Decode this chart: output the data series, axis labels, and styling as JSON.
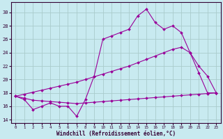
{
  "xlabel": "Windchill (Refroidissement éolien,°C)",
  "bg_color": "#c8eaf0",
  "grid_color": "#aacccc",
  "line_color": "#990099",
  "x_ticks": [
    0,
    1,
    2,
    3,
    4,
    5,
    6,
    7,
    8,
    9,
    10,
    11,
    12,
    13,
    14,
    15,
    16,
    17,
    18,
    19,
    20,
    21,
    22,
    23
  ],
  "y_ticks": [
    14,
    16,
    18,
    20,
    22,
    24,
    26,
    28,
    30
  ],
  "xlim": [
    -0.5,
    23.5
  ],
  "ylim": [
    13.5,
    31.5
  ],
  "line1_x": [
    0,
    1,
    2,
    3,
    4,
    5,
    6,
    7,
    8,
    9,
    10,
    11,
    12,
    13,
    14,
    15,
    16,
    17,
    18,
    19,
    20,
    21,
    22,
    23
  ],
  "line1_y": [
    17.5,
    17.0,
    15.5,
    16.0,
    16.5,
    16.0,
    16.0,
    14.5,
    17.0,
    20.5,
    26.0,
    26.5,
    27.0,
    27.5,
    29.5,
    30.5,
    28.5,
    27.5,
    28.0,
    27.0,
    24.0,
    21.0,
    18.0,
    18.0
  ],
  "line2_x": [
    0,
    1,
    2,
    3,
    4,
    5,
    6,
    7,
    8,
    9,
    10,
    11,
    12,
    13,
    14,
    15,
    16,
    17,
    18,
    19,
    20,
    21,
    22,
    23
  ],
  "line2_y": [
    17.5,
    17.8,
    18.1,
    18.4,
    18.7,
    19.0,
    19.3,
    19.6,
    20.0,
    20.4,
    20.8,
    21.2,
    21.6,
    22.0,
    22.5,
    23.0,
    23.5,
    24.0,
    24.5,
    24.8,
    24.0,
    22.0,
    20.5,
    18.0
  ],
  "line3_x": [
    0,
    1,
    2,
    3,
    4,
    5,
    6,
    7,
    8,
    9,
    10,
    11,
    12,
    13,
    14,
    15,
    16,
    17,
    18,
    19,
    20,
    21,
    22,
    23
  ],
  "line3_y": [
    17.5,
    17.2,
    16.9,
    16.8,
    16.7,
    16.6,
    16.5,
    16.4,
    16.5,
    16.6,
    16.7,
    16.8,
    16.9,
    17.0,
    17.1,
    17.2,
    17.3,
    17.4,
    17.5,
    17.6,
    17.7,
    17.8,
    17.9,
    18.0
  ]
}
